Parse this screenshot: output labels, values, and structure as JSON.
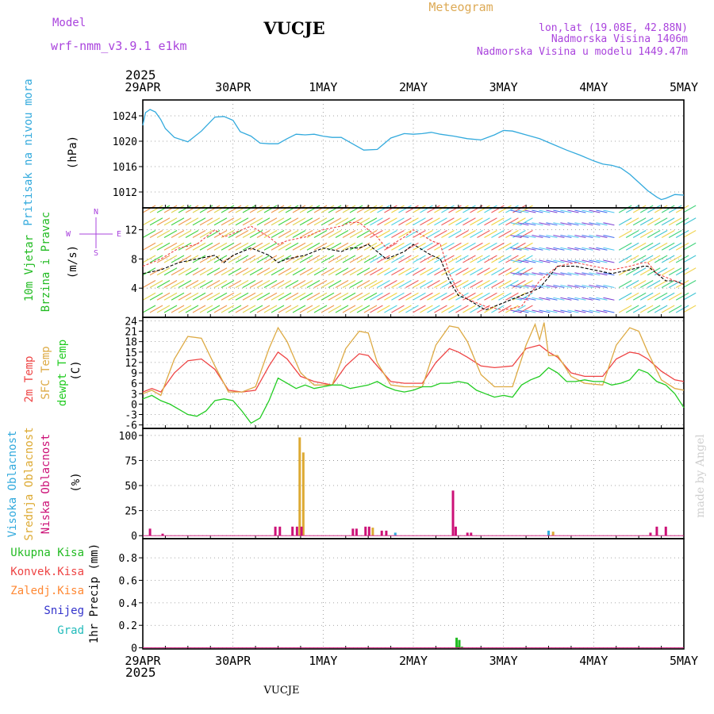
{
  "header": {
    "title": "VUCJE",
    "subtitle": "Meteogram",
    "model_label": "Model",
    "model_name": "wrf-nmm_v3.9.1  e1km",
    "coords": "lon,lat (19.08E, 42.88N)",
    "elevation": "Nadmorska Visina 1406m",
    "model_elevation": "Nadmorska Visina u modelu 1449.47m",
    "year": "2025",
    "footer_title": "VUCJE",
    "watermark": "made by Angel"
  },
  "colors": {
    "pressure": "#33aadd",
    "wind_label": "#22bb22",
    "temp2m": "#ee4444",
    "sfc": "#ddaa44",
    "dew": "#22cc22",
    "high_cloud": "#33aadd",
    "mid_cloud": "#ddaa33",
    "low_cloud": "#cc1177",
    "model": "#aa44dd",
    "total_precip": "#22bb22",
    "conv_precip": "#ee4444",
    "frozen": "#ff8833",
    "snow": "#3333cc",
    "hail": "#22bbbb"
  },
  "x_axis": {
    "ticks": [
      "29APR",
      "30APR",
      "1MAY",
      "2MAY",
      "3MAY",
      "4MAY",
      "5MAY"
    ],
    "day_min": 0,
    "day_max": 6
  },
  "panel_labels": {
    "pressure": {
      "name": "Pritisak na nivou mora",
      "unit": "(hPa)"
    },
    "wind": {
      "name1": "10m Vjetar",
      "name2": "Brzina i Pravac",
      "unit": "(m/s)",
      "compass_w": "W",
      "compass_e": "E",
      "compass_n": "N",
      "compass_s": "S"
    },
    "temp": {
      "t2m": "2m Temp",
      "sfc": "SFC Temp",
      "dew": "dewpt Temp",
      "unit": "(C)"
    },
    "cloud": {
      "high": "Visoka Oblacnost",
      "mid": "Srednja Oblacnost",
      "low": "Niska Oblacnost",
      "unit": "(%)"
    },
    "precip": {
      "total": "Ukupna Kisa",
      "conv": "Konvek.Kisa",
      "frozen": "Zaledj.Kisa",
      "snow": "Snijeg",
      "hail": "Grad",
      "unit": "1hr Precip (mm)"
    }
  },
  "chart_data": [
    {
      "type": "line",
      "id": "pressure",
      "ylabel": "(hPa)",
      "yticks": [
        1012,
        1016,
        1020,
        1024
      ],
      "ylim": [
        1009.5,
        1026.5
      ],
      "grid": true,
      "series": [
        {
          "name": "Pritisak na nivou mora",
          "x": [
            0,
            0.03,
            0.08,
            0.14,
            0.2,
            0.25,
            0.35,
            0.5,
            0.65,
            0.8,
            0.9,
            1.0,
            1.08,
            1.2,
            1.3,
            1.4,
            1.5,
            1.6,
            1.7,
            1.8,
            1.9,
            2.0,
            2.1,
            2.2,
            2.3,
            2.45,
            2.6,
            2.75,
            2.9,
            3.0,
            3.1,
            3.2,
            3.3,
            3.45,
            3.6,
            3.75,
            3.9,
            4.0,
            4.1,
            4.25,
            4.4,
            4.55,
            4.7,
            4.85,
            5.0,
            5.1,
            5.2,
            5.3,
            5.4,
            5.5,
            5.6,
            5.7,
            5.75,
            5.8,
            5.9,
            6.0
          ],
          "values": [
            1022.5,
            1024.5,
            1025.0,
            1024.6,
            1023.4,
            1022.0,
            1020.6,
            1019.9,
            1021.6,
            1023.8,
            1023.9,
            1023.3,
            1021.5,
            1020.8,
            1019.7,
            1019.6,
            1019.6,
            1020.4,
            1021.1,
            1021.0,
            1021.1,
            1020.8,
            1020.6,
            1020.6,
            1019.8,
            1018.6,
            1018.7,
            1020.5,
            1021.2,
            1021.1,
            1021.2,
            1021.4,
            1021.1,
            1020.8,
            1020.4,
            1020.2,
            1021.0,
            1021.7,
            1021.6,
            1021.0,
            1020.4,
            1019.5,
            1018.6,
            1017.8,
            1016.9,
            1016.4,
            1016.2,
            1015.8,
            1014.8,
            1013.5,
            1012.2,
            1011.2,
            1010.8,
            1011.0,
            1011.6,
            1011.5
          ]
        }
      ]
    },
    {
      "type": "line",
      "id": "wind",
      "ylabel": "(m/s)",
      "yticks": [
        4,
        8,
        12
      ],
      "ylim": [
        0,
        15
      ],
      "grid": true,
      "series": [
        {
          "name": "speed",
          "x": [
            0,
            0.2,
            0.4,
            0.6,
            0.8,
            0.9,
            1.0,
            1.2,
            1.4,
            1.5,
            1.6,
            1.8,
            2.0,
            2.2,
            2.3,
            2.4,
            2.5,
            2.6,
            2.7,
            2.9,
            3.0,
            3.2,
            3.3,
            3.4,
            3.5,
            3.6,
            3.8,
            4.0,
            4.2,
            4.4,
            4.6,
            4.8,
            5.0,
            5.2,
            5.4,
            5.55,
            5.6,
            5.7,
            5.8,
            5.9,
            6.0
          ],
          "values": [
            6,
            6.5,
            7.5,
            8,
            8.5,
            7.5,
            8.5,
            9.5,
            8.5,
            7.5,
            8,
            8.5,
            9.5,
            9,
            9.5,
            9.5,
            10,
            9,
            8,
            9,
            10,
            8.5,
            8,
            5,
            3,
            2.5,
            1,
            2,
            3,
            4,
            7,
            7,
            6.5,
            6,
            6.5,
            7,
            7,
            6,
            5,
            5,
            4.5
          ]
        },
        {
          "name": "gust",
          "x": [
            0,
            0.2,
            0.4,
            0.6,
            0.8,
            0.9,
            1.0,
            1.2,
            1.4,
            1.5,
            1.6,
            1.8,
            2.0,
            2.2,
            2.3,
            2.4,
            2.5,
            2.6,
            2.7,
            2.9,
            3.0,
            3.2,
            3.3,
            3.4,
            3.5,
            3.6,
            3.8,
            4.0,
            4.2,
            4.4,
            4.6,
            4.8,
            5.0,
            5.2,
            5.4,
            5.55,
            5.6,
            5.7,
            5.8,
            5.9,
            6.0
          ],
          "values": [
            7,
            8,
            9.5,
            10,
            12,
            11,
            11.5,
            12.5,
            11,
            10,
            10.5,
            11,
            12,
            12.5,
            13,
            13,
            12,
            11,
            9.5,
            11,
            12,
            10.5,
            10,
            6,
            3.5,
            2.5,
            1.5,
            1,
            1.5,
            5,
            7,
            7.5,
            7,
            6.5,
            7,
            7.5,
            7.5,
            6,
            5.5,
            5,
            4.5
          ]
        }
      ]
    },
    {
      "type": "line",
      "id": "temperature",
      "ylabel": "(C)",
      "yticks": [
        -6,
        -3,
        0,
        3,
        6,
        9,
        12,
        15,
        18,
        21,
        24
      ],
      "ylim": [
        -7,
        25
      ],
      "grid": true,
      "series": [
        {
          "name": "2m Temp",
          "x": [
            0,
            0.1,
            0.2,
            0.35,
            0.5,
            0.65,
            0.8,
            0.95,
            1.1,
            1.25,
            1.4,
            1.5,
            1.6,
            1.75,
            1.9,
            2.1,
            2.25,
            2.4,
            2.5,
            2.6,
            2.75,
            2.9,
            3.1,
            3.25,
            3.4,
            3.5,
            3.6,
            3.75,
            3.9,
            4.1,
            4.25,
            4.4,
            4.5,
            4.6,
            4.75,
            4.9,
            5.1,
            5.25,
            5.4,
            5.5,
            5.6,
            5.75,
            5.9,
            6.0
          ],
          "values": [
            3.5,
            4.5,
            3.5,
            9,
            12.5,
            13,
            10,
            4,
            3.5,
            4,
            11,
            15,
            13,
            8,
            6.5,
            5.5,
            11,
            14.5,
            14,
            11,
            6.5,
            6,
            6,
            12,
            16,
            15,
            13.5,
            11,
            10.5,
            11,
            16,
            17,
            15,
            13.5,
            9,
            8,
            8,
            13,
            15,
            14.5,
            13,
            9.5,
            7,
            6.5
          ]
        },
        {
          "name": "SFC Temp",
          "x": [
            0,
            0.1,
            0.2,
            0.35,
            0.5,
            0.65,
            0.8,
            0.95,
            1.1,
            1.25,
            1.4,
            1.5,
            1.6,
            1.75,
            1.9,
            2.1,
            2.25,
            2.4,
            2.5,
            2.6,
            2.75,
            2.9,
            3.1,
            3.25,
            3.4,
            3.5,
            3.6,
            3.75,
            3.9,
            4.1,
            4.25,
            4.35,
            4.4,
            4.45,
            4.5,
            4.6,
            4.75,
            4.9,
            5.1,
            5.25,
            5.4,
            5.5,
            5.6,
            5.75,
            5.9,
            6.0
          ],
          "values": [
            3,
            4,
            2.5,
            13,
            19.5,
            19,
            11,
            3.5,
            3.5,
            5,
            16,
            22,
            18,
            9,
            5.5,
            5.5,
            16,
            21,
            20.5,
            12,
            5.5,
            5,
            5,
            17,
            22.5,
            22,
            18,
            8.5,
            5,
            5,
            17,
            23,
            18.5,
            23.5,
            14,
            14,
            8,
            6,
            5.5,
            17,
            22,
            21,
            15,
            7,
            4.5,
            4
          ]
        },
        {
          "name": "dewpt Temp",
          "x": [
            0,
            0.1,
            0.2,
            0.3,
            0.4,
            0.5,
            0.6,
            0.7,
            0.8,
            0.9,
            1.0,
            1.1,
            1.2,
            1.3,
            1.4,
            1.5,
            1.6,
            1.7,
            1.8,
            1.9,
            2.0,
            2.1,
            2.2,
            2.3,
            2.4,
            2.5,
            2.6,
            2.7,
            2.8,
            2.9,
            3.0,
            3.1,
            3.2,
            3.3,
            3.4,
            3.5,
            3.6,
            3.7,
            3.8,
            3.9,
            4.0,
            4.1,
            4.2,
            4.3,
            4.4,
            4.5,
            4.6,
            4.7,
            4.8,
            4.9,
            5.0,
            5.1,
            5.2,
            5.3,
            5.4,
            5.5,
            5.6,
            5.7,
            5.8,
            5.9,
            6.0
          ],
          "values": [
            1.5,
            2.5,
            1,
            0,
            -1.5,
            -3,
            -3.5,
            -2,
            1,
            1.5,
            1,
            -2,
            -5.5,
            -4,
            1,
            7.5,
            6,
            4.5,
            5.5,
            4.5,
            5,
            5.5,
            5.5,
            4.5,
            5,
            5.5,
            6.5,
            5,
            4,
            3.5,
            4,
            5,
            5,
            6,
            6,
            6.5,
            6,
            4,
            3,
            2,
            2.5,
            2,
            5.5,
            7,
            8,
            10.5,
            9,
            6.5,
            6.5,
            7,
            6.5,
            6.5,
            5.5,
            6,
            7,
            10,
            9,
            6.5,
            5.5,
            3,
            -1
          ]
        }
      ]
    },
    {
      "type": "bar",
      "id": "cloud_cover",
      "ylabel": "(%)",
      "yticks": [
        0,
        25,
        50,
        75,
        100
      ],
      "ylim": [
        -3,
        107
      ],
      "grid": true,
      "series": [
        {
          "name": "Visoka Oblacnost",
          "x": [
            2.8,
            4.5
          ],
          "values": [
            3,
            5
          ]
        },
        {
          "name": "Srednja Oblacnost",
          "x": [
            1.74,
            1.78,
            2.55,
            4.55
          ],
          "values": [
            98,
            83,
            8,
            4
          ]
        },
        {
          "name": "Niska Oblacnost",
          "x": [
            0.08,
            0.22,
            1.47,
            1.52,
            1.66,
            1.71,
            1.76,
            2.33,
            2.37,
            2.47,
            2.51,
            2.65,
            2.7,
            3.44,
            3.47,
            3.6,
            3.64,
            5.63,
            5.7,
            5.8
          ],
          "values": [
            7,
            2,
            9,
            9,
            9,
            9,
            9,
            7,
            7,
            9,
            9,
            5,
            5,
            45,
            9,
            3,
            3,
            3,
            9,
            9
          ]
        }
      ]
    },
    {
      "type": "bar",
      "id": "precipitation",
      "ylabel": "1hr Precip (mm)",
      "yticks": [
        0,
        0.2,
        0.4,
        0.6,
        0.8
      ],
      "ylim": [
        -0.01,
        0.97
      ],
      "grid": true,
      "series": [
        {
          "name": "Ukupna Kisa",
          "x": [
            3.48,
            3.51,
            3.54
          ],
          "values": [
            0.09,
            0.07,
            0.01
          ]
        },
        {
          "name": "Konvek.Kisa",
          "x": [],
          "values": []
        },
        {
          "name": "Zaledj.Kisa",
          "x": [],
          "values": []
        },
        {
          "name": "Snijeg",
          "x": [],
          "values": []
        },
        {
          "name": "Grad",
          "x": [],
          "values": []
        }
      ]
    }
  ]
}
